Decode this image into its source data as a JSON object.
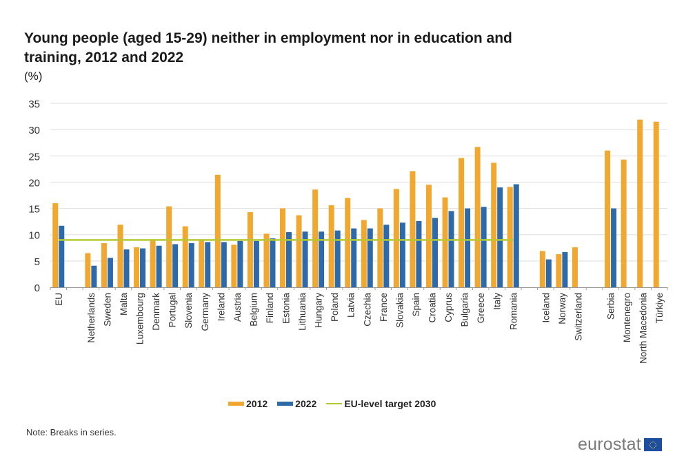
{
  "chart_data": {
    "type": "bar",
    "title": "Young people (aged 15-29) neither in employment nor in education and training, 2012 and 2022",
    "unit_label": "(%)",
    "xlabel": "",
    "ylabel": "%",
    "ylim": [
      0,
      35
    ],
    "yticks": [
      0,
      5,
      10,
      15,
      20,
      25,
      30,
      35
    ],
    "grid": true,
    "legend_position": "bottom",
    "categories": [
      "EU",
      "",
      "Netherlands",
      "Sweden",
      "Malta",
      "Luxembourg",
      "Denmark",
      "Portugal",
      "Slovenia",
      "Germany",
      "Ireland",
      "Austria",
      "Belgium",
      "Finland",
      "Estonia",
      "Lithuania",
      "Hungary",
      "Poland",
      "Latvia",
      "Czechia",
      "France",
      "Slovakia",
      "Spain",
      "Croatia",
      "Cyprus",
      "Bulgaria",
      "Greece",
      "Italy",
      "Romania",
      "",
      "Iceland",
      "Norway",
      "Switzerland",
      "",
      "Serbia",
      "Montenegro",
      "North Macedonia",
      "Türkiye"
    ],
    "series": [
      {
        "name": "2012",
        "color": "#f0a830",
        "values": [
          16.0,
          null,
          6.5,
          8.4,
          11.9,
          7.6,
          9.0,
          15.4,
          11.6,
          9.0,
          21.4,
          8.1,
          14.3,
          10.2,
          15.0,
          13.7,
          18.6,
          15.6,
          17.0,
          12.8,
          15.0,
          18.7,
          22.1,
          19.5,
          17.1,
          24.6,
          26.7,
          23.7,
          19.1,
          null,
          6.9,
          6.3,
          7.6,
          null,
          26.0,
          24.3,
          31.9,
          31.5
        ]
      },
      {
        "name": "2022",
        "color": "#2e6aa8",
        "values": [
          11.7,
          null,
          4.1,
          5.6,
          7.2,
          7.4,
          7.9,
          8.2,
          8.4,
          8.6,
          8.6,
          8.8,
          8.8,
          9.3,
          10.5,
          10.6,
          10.6,
          10.8,
          11.2,
          11.2,
          11.9,
          12.3,
          12.6,
          13.2,
          14.5,
          15.0,
          15.3,
          19.0,
          19.6,
          null,
          5.3,
          6.7,
          null,
          null,
          15.0,
          null,
          null,
          null
        ]
      }
    ],
    "target_line": {
      "name": "EU-level target 2030",
      "value": 9.0,
      "from": "EU",
      "to": "Romania",
      "color": "#b5c832"
    }
  },
  "legend": {
    "item_2012": "2012",
    "item_2022": "2022",
    "item_target": "EU-level target 2030"
  },
  "note": "Note: Breaks in series.",
  "logo": "eurostat"
}
